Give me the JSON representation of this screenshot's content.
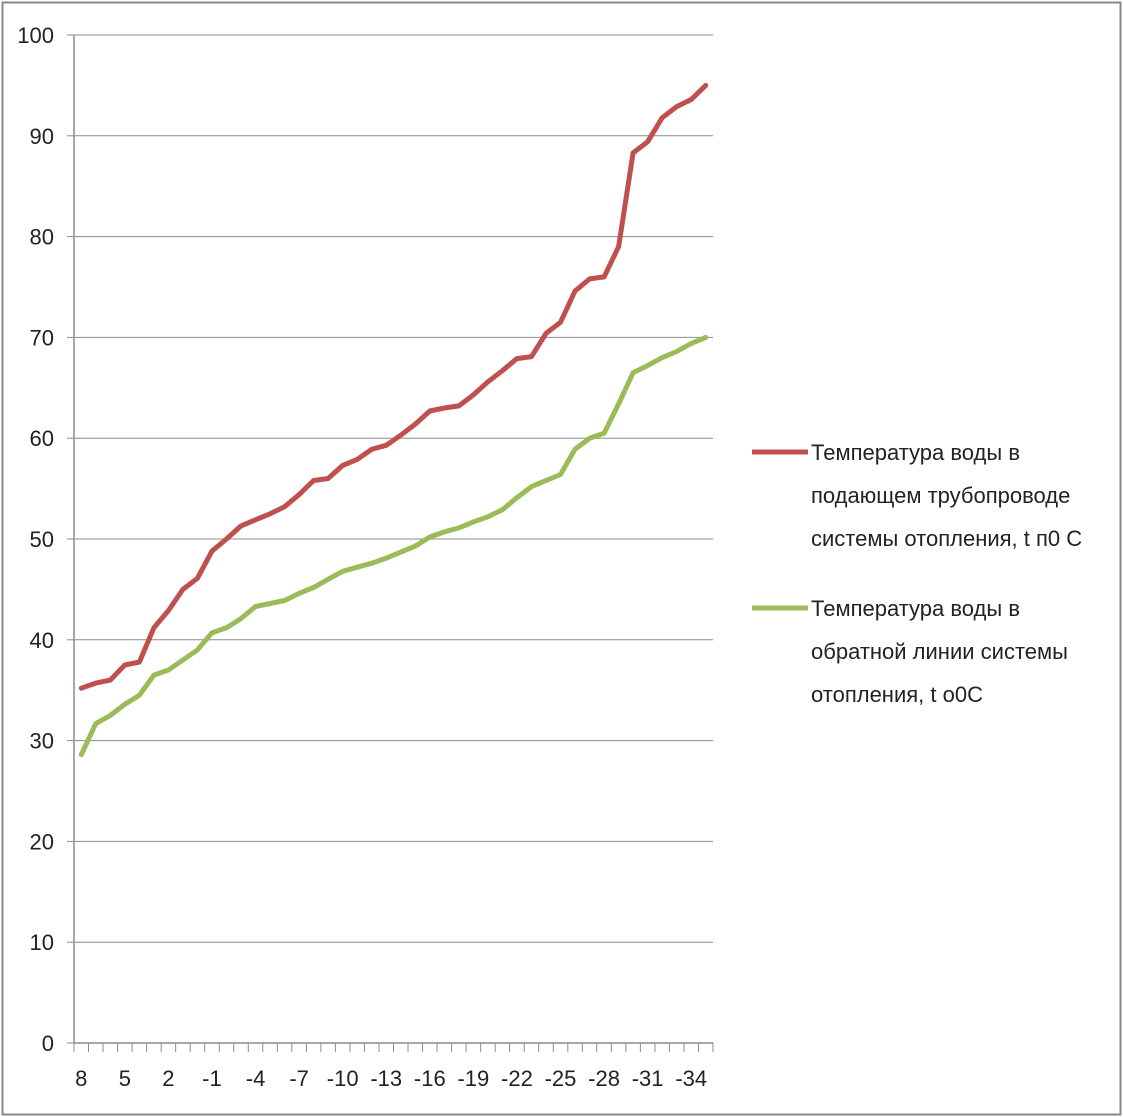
{
  "chart_data": {
    "type": "line",
    "title": "",
    "xlabel": "",
    "ylabel": "",
    "x": [
      8,
      7,
      6,
      5,
      4,
      3,
      2,
      1,
      0,
      -1,
      -2,
      -3,
      -4,
      -5,
      -6,
      -7,
      -8,
      -9,
      -10,
      -11,
      -12,
      -13,
      -14,
      -15,
      -16,
      -17,
      -18,
      -19,
      -20,
      -21,
      -22,
      -23,
      -24,
      -25,
      -26,
      -27,
      -28,
      -29,
      -30,
      -31,
      -32,
      -33,
      -34,
      -35
    ],
    "x_tick_labels": [
      "8",
      "5",
      "2",
      "-1",
      "-4",
      "-7",
      "-10",
      "-13",
      "-16",
      "-19",
      "-22",
      "-25",
      "-28",
      "-31",
      "-34"
    ],
    "y_tick_labels": [
      "0",
      "10",
      "20",
      "30",
      "40",
      "50",
      "60",
      "70",
      "80",
      "90",
      "100"
    ],
    "ylim": [
      0,
      100
    ],
    "grid": "horizontal",
    "legend_position": "right",
    "series": [
      {
        "name": "Температура воды в подающем трубопроводе системы отопления, t п0 С",
        "legend_lines": [
          "Температура воды в",
          "подающем трубопроводе",
          "системы отопления, t п0 С"
        ],
        "color": "#c0504d",
        "values": [
          35.2,
          35.7,
          36.0,
          37.5,
          37.8,
          41.2,
          42.9,
          45.0,
          46.1,
          48.8,
          50.0,
          51.3,
          51.9,
          52.5,
          53.2,
          54.4,
          55.8,
          56.0,
          57.3,
          57.9,
          58.9,
          59.3,
          60.3,
          61.4,
          62.7,
          63.0,
          63.2,
          64.3,
          65.6,
          66.7,
          67.9,
          68.1,
          70.4,
          71.5,
          74.6,
          75.8,
          76.0,
          79.0,
          88.3,
          89.4,
          91.8,
          92.9,
          93.6,
          95.0
        ]
      },
      {
        "name": "Температура воды в обратной линии системы отопления, t о0С",
        "legend_lines": [
          "Температура воды в",
          "обратной линии системы",
          "отопления, t о0С"
        ],
        "color": "#9bbb59",
        "values": [
          28.6,
          31.7,
          32.5,
          33.6,
          34.5,
          36.5,
          37.0,
          38.0,
          39.0,
          40.7,
          41.2,
          42.1,
          43.3,
          43.6,
          43.9,
          44.6,
          45.2,
          46.0,
          46.8,
          47.2,
          47.6,
          48.1,
          48.7,
          49.3,
          50.2,
          50.7,
          51.1,
          51.7,
          52.2,
          52.9,
          54.1,
          55.2,
          55.8,
          56.4,
          58.9,
          60.0,
          60.5,
          63.4,
          66.5,
          67.2,
          68.0,
          68.6,
          69.4,
          70.0
        ]
      }
    ]
  }
}
